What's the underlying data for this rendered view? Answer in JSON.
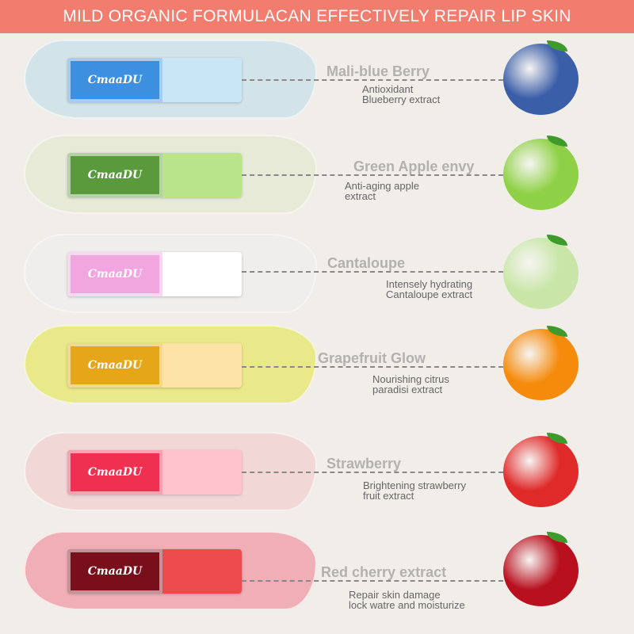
{
  "banner": "MILD ORGANIC FORMULACAN EFFECTIVELY REPAIR LIP SKIN",
  "brand": "CmaaDU",
  "products": [
    {
      "name": "Mali-blue Berry",
      "desc1": "Antioxidant",
      "desc2": "Blueberry extract",
      "fruit": "blueberry-icon",
      "smear": "#b9dbe9",
      "win": "#3d8fe0",
      "cap": "#c9e6f6",
      "fruitColor": "#3b5ea8"
    },
    {
      "name": "Green Apple envy",
      "desc1": "Anti-aging apple",
      "desc2": "extract",
      "fruit": "green-apple-icon",
      "smear": "#dfe8c8",
      "win": "#5a9a3c",
      "cap": "#b9e48a",
      "fruitColor": "#8fd146"
    },
    {
      "name": "Cantaloupe",
      "desc1": "Intensely hydrating",
      "desc2": "Cantaloupe extract",
      "fruit": "cantaloupe-icon",
      "smear": "#eeeeee",
      "win": "#f2a6e0",
      "cap": "#ffffff",
      "fruitColor": "#c9e6a8"
    },
    {
      "name": "Grapefruit Glow",
      "desc1": "Nourishing citrus",
      "desc2": "paradisi extract",
      "fruit": "orange-icon",
      "smear": "#e3e53a",
      "win": "#e6a61a",
      "cap": "#fde3a8",
      "fruitColor": "#f58a0b"
    },
    {
      "name": "Strawberry",
      "desc1": "Brightening strawberry",
      "desc2": "fruit extract",
      "fruit": "strawberry-icon",
      "smear": "#f4c6c8",
      "win": "#f03050",
      "cap": "#fdc2cb",
      "fruitColor": "#e02a2a"
    },
    {
      "name": "Red cherry extract",
      "desc1": "Repair skin damage",
      "desc2": "lock watre and moisturize",
      "fruit": "cherry-icon",
      "smear": "#f07c8c",
      "win": "#7a0f1c",
      "cap": "#ec4a4d",
      "fruitColor": "#b8101e"
    }
  ]
}
